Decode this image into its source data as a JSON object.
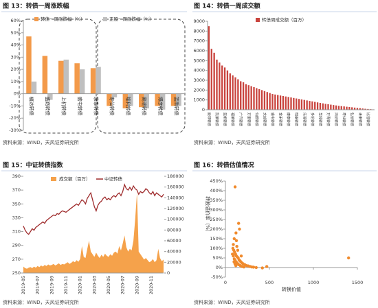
{
  "chart_data": [
    {
      "type": "bar",
      "title": "图 13：转债一周涨跌幅",
      "source": "资料来源：WIND，天风证券研究所",
      "categories": [
        "福达转债",
        "盛路转债",
        "上机转债",
        "盛屯转债",
        "康泰转债",
        "寿仙转债",
        "隆利转债",
        "奥瑞转债",
        "博彦转债",
        "蓝盾转债"
      ],
      "series": [
        {
          "name": "转债一周涨跌幅（%）",
          "color": "#f39a4a",
          "values": [
            47,
            31,
            27,
            25,
            21,
            -10,
            -12,
            -11,
            -10,
            -10
          ]
        },
        {
          "name": "正股一周涨跌幅（%）",
          "color": "#bfbfbf",
          "values": [
            10,
            -5,
            28,
            20,
            22,
            -3,
            -10,
            -12,
            -13,
            -10
          ]
        }
      ],
      "ylim": [
        -30,
        60
      ],
      "yticks": [
        {
          "value": -30,
          "label": "-30%"
        },
        {
          "value": -20,
          "label": "-20%"
        },
        {
          "value": -10,
          "label": "-10%"
        },
        {
          "value": 0,
          "label": "0%"
        },
        {
          "value": 10,
          "label": "10%"
        },
        {
          "value": 20,
          "label": "20%"
        },
        {
          "value": 30,
          "label": "30%"
        },
        {
          "value": 40,
          "label": "40%"
        },
        {
          "value": 50,
          "label": "50%"
        },
        {
          "value": 60,
          "label": "60%"
        }
      ]
    },
    {
      "type": "bar",
      "title": "图 14：转债一周成交额",
      "source": "资料来源：WIND，天风证券研究所",
      "categories": [
        "欧菲转债",
        null,
        null,
        "凯莱转债",
        null,
        null,
        "蓝帆转债",
        null,
        null,
        "福莱转债",
        null,
        null,
        "广汽转债",
        null,
        null,
        "万里转债",
        null,
        null,
        "仙鹤转债",
        null,
        null,
        "文灿转债",
        null,
        null,
        "盛屯转债",
        null,
        null,
        "金禾转债",
        null,
        null,
        "康泰转债",
        null,
        null,
        "明泰转债",
        null,
        null,
        "乐普转债",
        null,
        null,
        "多伦转债",
        null,
        null,
        "至纯转债",
        null,
        null,
        "万青转债",
        null,
        null,
        "鸿达转债",
        null,
        null,
        "寿仙转债",
        null,
        null,
        "弘信转债",
        null,
        null,
        "未来转债",
        null,
        null,
        "比音转债",
        null,
        null
      ],
      "series": [
        {
          "name": "转债周成交额（百万）",
          "color": "#c9443e",
          "values": [
            8500,
            6200,
            5800,
            5100,
            4800,
            4500,
            4300,
            4000,
            3700,
            3500,
            3300,
            3100,
            2900,
            2800,
            2600,
            2500,
            2400,
            2300,
            2200,
            2100,
            2000,
            1900,
            1800,
            1700,
            1600,
            1550,
            1500,
            1450,
            1400,
            1350,
            1300,
            1250,
            1200,
            1150,
            1100,
            1050,
            1000,
            950,
            900,
            850,
            800,
            750,
            700,
            650,
            600,
            560,
            520,
            480,
            440,
            400,
            370,
            340,
            310,
            280,
            250,
            220,
            190,
            160,
            130,
            100,
            80,
            60,
            40
          ]
        }
      ],
      "ylim": [
        0,
        9000
      ],
      "yticks": [
        0,
        1000,
        2000,
        3000,
        4000,
        5000,
        6000,
        7000,
        8000,
        9000
      ]
    },
    {
      "type": "line",
      "title": "图 15：中证转债指数",
      "source": "资料来源：WIND，天风证券研究所",
      "categories": [
        "2019-05",
        null,
        null,
        null,
        null,
        null,
        null,
        null,
        "2019-07",
        null,
        null,
        null,
        null,
        null,
        null,
        null,
        "2019-09",
        null,
        null,
        null,
        null,
        null,
        null,
        null,
        "2019-11",
        null,
        null,
        null,
        null,
        null,
        null,
        null,
        "2020-01",
        null,
        null,
        null,
        null,
        null,
        null,
        null,
        "2020-03",
        null,
        null,
        null,
        null,
        null,
        null,
        null,
        "2020-05",
        null,
        null,
        null,
        null,
        null,
        null,
        null,
        "2020-07",
        null,
        null,
        null,
        null,
        null,
        null,
        null,
        "2020-09",
        null,
        null,
        null,
        null,
        null,
        null,
        null,
        "2020-11",
        null,
        null,
        null,
        null,
        null,
        null,
        null
      ],
      "series": [
        {
          "name": "成交额（百万）",
          "color": "#f5a24b",
          "style": "area",
          "axis": "y2",
          "values": [
            12000,
            9000,
            8000,
            10000,
            11000,
            9000,
            12000,
            10000,
            13000,
            11000,
            14000,
            12000,
            15000,
            13000,
            16000,
            14000,
            15000,
            17000,
            14000,
            16000,
            18000,
            15000,
            17000,
            16000,
            18000,
            20000,
            17000,
            19000,
            22000,
            20000,
            24000,
            21000,
            26000,
            50000,
            30000,
            28000,
            45000,
            60000,
            40000,
            35000,
            30000,
            38000,
            32000,
            28000,
            34000,
            30000,
            36000,
            32000,
            30000,
            35000,
            32000,
            38000,
            40000,
            36000,
            50000,
            42000,
            55000,
            70000,
            48000,
            40000,
            45000,
            42000,
            60000,
            100000,
            150000,
            40000,
            35000,
            30000,
            25000,
            28000,
            24000,
            20000,
            22000,
            26000,
            20000,
            24000,
            45000,
            28000,
            22000,
            25000
          ]
        },
        {
          "name": "中证转债",
          "color": "#9e2a2b",
          "style": "line",
          "values": [
            318,
            312,
            308,
            306,
            310,
            314,
            312,
            316,
            318,
            320,
            322,
            324,
            322,
            326,
            328,
            330,
            332,
            334,
            333,
            336,
            335,
            338,
            340,
            339,
            338,
            340,
            342,
            344,
            346,
            348,
            350,
            348,
            352,
            356,
            354,
            350,
            358,
            362,
            366,
            356,
            346,
            340,
            348,
            352,
            354,
            358,
            360,
            356,
            358,
            356,
            360,
            362,
            360,
            364,
            366,
            362,
            368,
            378,
            372,
            370,
            374,
            370,
            376,
            372,
            370,
            364,
            368,
            366,
            368,
            372,
            370,
            366,
            364,
            368,
            362,
            366,
            364,
            362,
            360,
            364
          ]
        }
      ],
      "ylim": [
        250,
        390
      ],
      "yticks": [
        250,
        270,
        290,
        310,
        330,
        350,
        370,
        390
      ],
      "y2lim": [
        0,
        180000
      ],
      "y2ticks": [
        0,
        20000,
        40000,
        60000,
        80000,
        100000,
        120000,
        140000,
        160000,
        180000
      ]
    },
    {
      "type": "scatter",
      "title": "图 16：转债估值情况",
      "source": "资料来源：WIND，天风证券研究所",
      "xlabel": "转换价值",
      "ylabel": "转股溢价率（%）",
      "color": "#f08a2c",
      "x": [
        1400,
        470,
        110,
        150,
        160,
        120,
        100,
        90,
        130,
        85,
        95,
        105,
        115,
        125,
        135,
        145,
        155,
        165,
        175,
        185,
        200,
        220,
        240,
        260,
        280,
        300,
        320,
        90,
        100,
        110,
        120,
        130,
        140,
        150,
        170,
        190,
        210,
        80,
        98,
        108,
        118,
        350,
        420,
        180,
        140,
        125
      ],
      "values": [
        50,
        5,
        420,
        230,
        200,
        180,
        150,
        120,
        110,
        100,
        90,
        80,
        70,
        60,
        55,
        50,
        40,
        35,
        30,
        25,
        20,
        15,
        10,
        8,
        5,
        3,
        2,
        60,
        45,
        38,
        30,
        25,
        20,
        15,
        10,
        5,
        3,
        70,
        30,
        20,
        10,
        0,
        -2,
        60,
        90,
        140
      ],
      "xlim": [
        0,
        1500
      ],
      "xticks": [
        0,
        500,
        1000,
        1500
      ],
      "ylim": [
        -50,
        450
      ],
      "yticks": [
        {
          "value": -50,
          "label": "-50%"
        },
        {
          "value": 0,
          "label": "0%"
        },
        {
          "value": 50,
          "label": "50%"
        },
        {
          "value": 100,
          "label": "100%"
        },
        {
          "value": 150,
          "label": "150%"
        },
        {
          "value": 200,
          "label": "200%"
        },
        {
          "value": 250,
          "label": "250%"
        },
        {
          "value": 300,
          "label": "300%"
        },
        {
          "value": 350,
          "label": "350%"
        },
        {
          "value": 400,
          "label": "400%"
        },
        {
          "value": 450,
          "label": "450%"
        }
      ]
    }
  ]
}
